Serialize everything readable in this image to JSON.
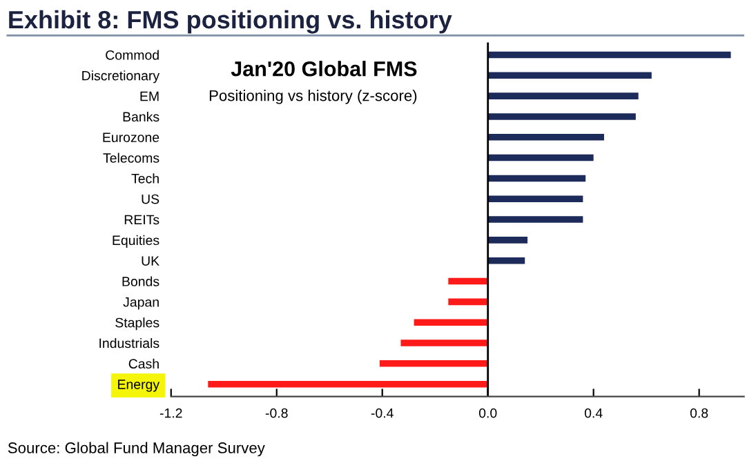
{
  "chart_data": {
    "type": "bar",
    "orientation": "horizontal",
    "title": "Exhibit 8: FMS positioning vs. history",
    "categories": [
      "Commod",
      "Discretionary",
      "EM",
      "Banks",
      "Eurozone",
      "Telecoms",
      "Tech",
      "US",
      "REITs",
      "Equities",
      "UK",
      "Bonds",
      "Japan",
      "Staples",
      "Industrials",
      "Cash",
      "Energy"
    ],
    "values": [
      0.92,
      0.62,
      0.57,
      0.56,
      0.44,
      0.4,
      0.37,
      0.36,
      0.36,
      0.15,
      0.14,
      -0.15,
      -0.15,
      -0.28,
      -0.33,
      -0.41,
      -1.06
    ],
    "colors": [
      "#1c2b5a",
      "#1c2b5a",
      "#1c2b5a",
      "#1c2b5a",
      "#1c2b5a",
      "#1c2b5a",
      "#1c2b5a",
      "#1c2b5a",
      "#1c2b5a",
      "#1c2b5a",
      "#1c2b5a",
      "#ff1a1a",
      "#ff1a1a",
      "#ff1a1a",
      "#ff1a1a",
      "#ff1a1a",
      "#ff1a1a"
    ],
    "xlim": [
      -1.2,
      0.97
    ],
    "xticks": [
      {
        "value": -1.2,
        "label": "-1.2"
      },
      {
        "value": -0.8,
        "label": "-0.8"
      },
      {
        "value": -0.4,
        "label": "-0.4"
      },
      {
        "value": 0,
        "label": "0.0"
      },
      {
        "value": 0.4,
        "label": "0.4"
      },
      {
        "value": 0.8,
        "label": "0.8"
      }
    ],
    "ref_lines": [
      {
        "axis": "x",
        "value": 0,
        "color": "#000000"
      }
    ],
    "annotations": [
      "Jan'20 Global FMS",
      "Positioning vs history (z-score)",
      "Source: Global Fund Manager Survey"
    ],
    "grid": false,
    "legend": false
  }
}
